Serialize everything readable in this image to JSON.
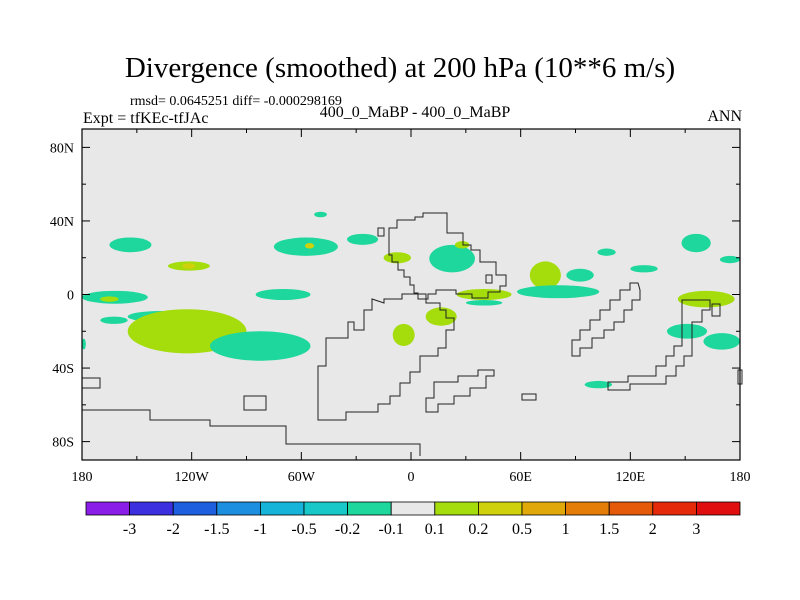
{
  "header": {
    "title": "Divergence (smoothed) at 200 hPa (10**6 m/s)",
    "stats": "rmsd= 0.0645251 diff= -0.000298169",
    "experiment": "Expt = tfKEc-tfJAc",
    "case": "400_0_MaBP - 400_0_MaBP",
    "season": "ANN"
  },
  "chart_data": {
    "type": "heatmap",
    "title": "Divergence (smoothed) at 200 hPa (10**6 m/s)",
    "x_ticks": [
      "180",
      "120W",
      "60W",
      "0",
      "60E",
      "120E",
      "180"
    ],
    "x_tick_values": [
      -180,
      -120,
      -60,
      0,
      60,
      120,
      180
    ],
    "y_ticks": [
      "80N",
      "40N",
      "0",
      "40S",
      "80S"
    ],
    "y_tick_values": [
      80,
      40,
      0,
      -40,
      -80
    ],
    "xlim": [
      -180,
      180
    ],
    "ylim": [
      -90,
      90
    ],
    "colorbar": {
      "labels": [
        "-3",
        "-2",
        "-1.5",
        "-1",
        "-0.5",
        "-0.2",
        "-0.1",
        "0.1",
        "0.2",
        "0.5",
        "1",
        "1.5",
        "2",
        "3"
      ],
      "colors": [
        "#8a1ee8",
        "#3c2fe0",
        "#1e5fe0",
        "#1c8fe0",
        "#16b4d8",
        "#18c8c8",
        "#1ed79c",
        "#e8e8e8",
        "#a4dc0c",
        "#cfd20a",
        "#e0a808",
        "#e47c08",
        "#e45a08",
        "#e42a08",
        "#e00e0e"
      ]
    },
    "background_color": "#e8e8e8",
    "regions": [
      {
        "level": "-0.1..-0.2",
        "lon": [
          -165,
          -142
        ],
        "lat": [
          23,
          31
        ]
      },
      {
        "level": "0.1..0.2",
        "lon": [
          -133,
          -110
        ],
        "lat": [
          13,
          18
        ]
      },
      {
        "level": "0.2..0.5",
        "lon": [
          -125,
          -118
        ],
        "lat": [
          14,
          17
        ]
      },
      {
        "level": "-0.1..-0.2",
        "lon": [
          -75,
          -40
        ],
        "lat": [
          21,
          31
        ]
      },
      {
        "level": "0.2..0.5",
        "lon": [
          -58,
          -53
        ],
        "lat": [
          25,
          28
        ]
      },
      {
        "level": "-0.1..-0.2",
        "lon": [
          -35,
          -18
        ],
        "lat": [
          27,
          33
        ]
      },
      {
        "level": "-0.1..-0.2",
        "lon": [
          -53,
          -46
        ],
        "lat": [
          42,
          45
        ]
      },
      {
        "level": "0.1..0.2",
        "lon": [
          -15,
          0
        ],
        "lat": [
          17,
          23
        ]
      },
      {
        "level": "-0.1..-0.2",
        "lon": [
          10,
          35
        ],
        "lat": [
          12,
          27
        ]
      },
      {
        "level": "0.1..0.2",
        "lon": [
          24,
          32
        ],
        "lat": [
          25,
          29
        ]
      },
      {
        "level": "0.1..0.2",
        "lon": [
          25,
          55
        ],
        "lat": [
          -3,
          3
        ]
      },
      {
        "level": "-0.1..-0.2",
        "lon": [
          30,
          50
        ],
        "lat": [
          -6,
          -3
        ]
      },
      {
        "level": "0.1..0.2",
        "lon": [
          65,
          82
        ],
        "lat": [
          3,
          18
        ]
      },
      {
        "level": "-0.1..-0.2",
        "lon": [
          85,
          100
        ],
        "lat": [
          7,
          14
        ]
      },
      {
        "level": "-0.1..-0.2",
        "lon": [
          58,
          103
        ],
        "lat": [
          -2,
          5
        ]
      },
      {
        "level": "-0.1..-0.2",
        "lon": [
          102,
          112
        ],
        "lat": [
          21,
          25
        ]
      },
      {
        "level": "-0.1..-0.2",
        "lon": [
          120,
          135
        ],
        "lat": [
          12,
          16
        ]
      },
      {
        "level": "-0.1..-0.2",
        "lon": [
          148,
          164
        ],
        "lat": [
          23,
          33
        ]
      },
      {
        "level": "-0.1..-0.2",
        "lon": [
          169,
          180
        ],
        "lat": [
          17,
          21
        ]
      },
      {
        "level": "0.1..0.2",
        "lon": [
          146,
          177
        ],
        "lat": [
          -7,
          2
        ]
      },
      {
        "level": "-0.1..-0.2",
        "lon": [
          -180,
          -144
        ],
        "lat": [
          -5,
          2
        ]
      },
      {
        "level": "0.1..0.2",
        "lon": [
          -170,
          -160
        ],
        "lat": [
          -4,
          -1
        ]
      },
      {
        "level": "-0.1..-0.2",
        "lon": [
          -155,
          -120
        ],
        "lat": [
          -15,
          -9
        ]
      },
      {
        "level": "0.1..0.2",
        "lon": [
          -155,
          -90
        ],
        "lat": [
          -32,
          -8
        ]
      },
      {
        "level": "-0.1..-0.2",
        "lon": [
          -110,
          -55
        ],
        "lat": [
          -36,
          -20
        ]
      },
      {
        "level": "-0.1..-0.2",
        "lon": [
          -85,
          -55
        ],
        "lat": [
          -3,
          3
        ]
      },
      {
        "level": "-0.1..-0.2",
        "lon": [
          -170,
          -155
        ],
        "lat": [
          -16,
          -12
        ]
      },
      {
        "level": "0.1..0.2",
        "lon": [
          -10,
          2
        ],
        "lat": [
          -28,
          -16
        ]
      },
      {
        "level": "0.1..0.2",
        "lon": [
          8,
          25
        ],
        "lat": [
          -17,
          -7
        ]
      },
      {
        "level": "-0.1..-0.2",
        "lon": [
          140,
          162
        ],
        "lat": [
          -24,
          -16
        ]
      },
      {
        "level": "-0.1..-0.2",
        "lon": [
          160,
          180
        ],
        "lat": [
          -30,
          -21
        ]
      },
      {
        "level": "-0.1..-0.2",
        "lon": [
          -180,
          -178
        ],
        "lat": [
          -30,
          -24
        ]
      },
      {
        "level": "-0.1..-0.2",
        "lon": [
          95,
          110
        ],
        "lat": [
          -51,
          -47
        ]
      }
    ]
  }
}
